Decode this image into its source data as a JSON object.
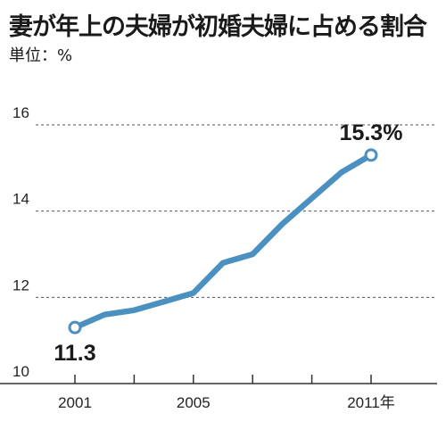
{
  "title": "妻が年上の夫婦が初婚夫婦に占める割合",
  "unit_label": "単位：%",
  "chart_data": {
    "type": "line",
    "x": [
      2001,
      2002,
      2003,
      2004,
      2005,
      2006,
      2007,
      2008,
      2009,
      2010,
      2011
    ],
    "series": [
      {
        "values": [
          11.3,
          11.6,
          11.7,
          11.9,
          12.1,
          12.8,
          13.0,
          13.7,
          14.3,
          14.9,
          15.3
        ]
      }
    ],
    "x_tick_labels": [
      "2001",
      "2005",
      "2011年"
    ],
    "x_tick_values": [
      2001,
      2005,
      2011
    ],
    "y_ticks": [
      10,
      12,
      14,
      16
    ],
    "ylim": [
      10,
      16
    ],
    "xlim": [
      2001,
      2011
    ],
    "grid": "horizontal dashed",
    "annotations": [
      {
        "text": "11.3",
        "x": 2001,
        "y": 11.3,
        "placement": "below"
      },
      {
        "text": "15.3%",
        "x": 2011,
        "y": 15.3,
        "placement": "above"
      }
    ],
    "line_color": "#4a90c0",
    "marker_fill": "#ffffff"
  }
}
